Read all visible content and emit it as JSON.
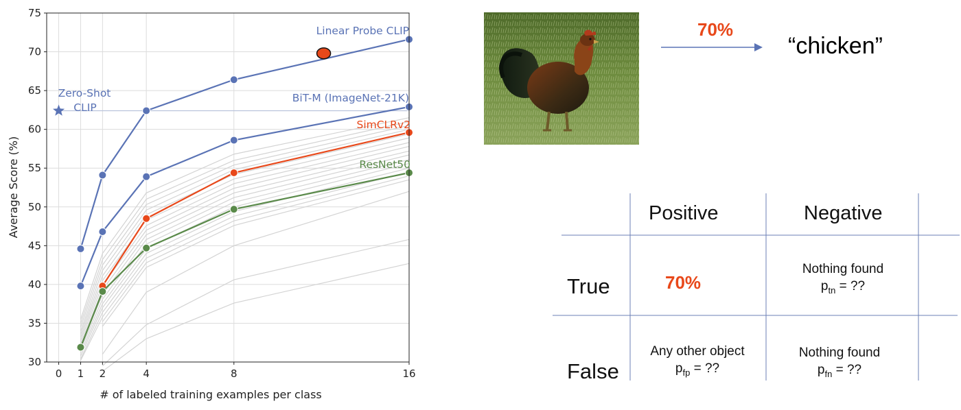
{
  "chart_data": {
    "type": "line",
    "xlabel": "# of labeled training examples per class",
    "ylabel": "Average Score (%)",
    "xticks": [
      0,
      1,
      2,
      4,
      8,
      16
    ],
    "yticks": [
      30,
      35,
      40,
      45,
      50,
      55,
      60,
      65,
      70,
      75
    ],
    "ylim": [
      30,
      75
    ],
    "grid": true,
    "series": [
      {
        "name": "Linear Probe CLIP",
        "color": "#5a73b5",
        "x": [
          1,
          2,
          4,
          8,
          16
        ],
        "y": [
          44.6,
          54.1,
          62.4,
          66.4,
          71.6
        ]
      },
      {
        "name": "BiT-M (ImageNet-21K)",
        "color": "#5a73b5",
        "x": [
          1,
          2,
          4,
          8,
          16
        ],
        "y": [
          39.8,
          46.8,
          53.9,
          58.6,
          62.9
        ]
      },
      {
        "name": "SimCLRv2",
        "color": "#e8481a",
        "x": [
          2,
          4,
          8,
          16
        ],
        "y": [
          39.8,
          48.5,
          54.4,
          59.6
        ]
      },
      {
        "name": "ResNet50",
        "color": "#5a8a4a",
        "x": [
          1,
          2,
          4,
          8,
          16
        ],
        "y": [
          31.9,
          39.1,
          44.7,
          49.7,
          54.4
        ]
      }
    ],
    "zero_shot": {
      "label_line1": "Zero-Shot",
      "label_line2": "CLIP",
      "x": 0,
      "y": 62.4,
      "color": "#5a73b5"
    },
    "highlight_point": {
      "x": 12.1,
      "y": 69.8,
      "color": "#e8481a"
    },
    "background_lines": [
      [
        1,
        35.5,
        2,
        44,
        4,
        51.8,
        8,
        56.8,
        16,
        61.5
      ],
      [
        1,
        35,
        2,
        43.2,
        4,
        51,
        8,
        56,
        16,
        61
      ],
      [
        1,
        34.5,
        2,
        42.5,
        4,
        50.3,
        8,
        55.4,
        16,
        60.5
      ],
      [
        1,
        34,
        2,
        41.8,
        4,
        49.6,
        8,
        54.8,
        16,
        60
      ],
      [
        1,
        33.6,
        2,
        41.1,
        4,
        49,
        8,
        54.2,
        16,
        59.4
      ],
      [
        1,
        33.2,
        2,
        40.5,
        4,
        48.3,
        8,
        53.6,
        16,
        58.9
      ],
      [
        1,
        32.8,
        2,
        39.9,
        4,
        47.6,
        8,
        53,
        16,
        58.3
      ],
      [
        1,
        32.4,
        2,
        39.3,
        4,
        47,
        8,
        52.4,
        16,
        57.8
      ],
      [
        1,
        32,
        2,
        38.7,
        4,
        46.4,
        8,
        51.8,
        16,
        57.2
      ],
      [
        1,
        31.6,
        2,
        38.1,
        4,
        45.8,
        8,
        51.2,
        16,
        56.7
      ],
      [
        1,
        31.2,
        2,
        37.5,
        4,
        45.2,
        8,
        50.6,
        16,
        56.1
      ],
      [
        1,
        30.8,
        2,
        37,
        4,
        44.6,
        8,
        50,
        16,
        55.6
      ],
      [
        1,
        30.4,
        2,
        36.4,
        4,
        44,
        8,
        49.4,
        16,
        55
      ],
      [
        1,
        30.2,
        2,
        35.8,
        4,
        43.4,
        8,
        48.8,
        16,
        54.5
      ],
      [
        2,
        35.2,
        4,
        42.8,
        8,
        48.2,
        16,
        54
      ],
      [
        2,
        34.6,
        4,
        42.2,
        8,
        47.6,
        16,
        53.5
      ],
      [
        2,
        31,
        4,
        39,
        8,
        45,
        16,
        52
      ],
      [
        2,
        29.5,
        4,
        34.8,
        8,
        40.6,
        16,
        45.8
      ],
      [
        2,
        28.8,
        4,
        33,
        8,
        37.6,
        16,
        42.7
      ]
    ]
  },
  "classification": {
    "percent": "70%",
    "label": "“chicken”"
  },
  "confusion_table": {
    "col_positive": "Positive",
    "col_negative": "Negative",
    "row_true": "True",
    "row_false": "False",
    "tp_value": "70%",
    "tn_line1": "Nothing found",
    "tn_prefix": "p",
    "tn_sub": "tn",
    "tn_suffix": " = ??",
    "fp_line1": "Any other object",
    "fp_prefix": "p",
    "fp_sub": "fp",
    "fp_suffix": " = ??",
    "fn_line1": "Nothing found",
    "fn_prefix": "p",
    "fn_sub": "fn",
    "fn_suffix": " = ??"
  },
  "colors": {
    "accent": "#e8481a",
    "clip_blue": "#5a73b5",
    "resnet_green": "#5a8a4a",
    "grid": "#d9d9d9",
    "table_lines": "#6b7fb6"
  }
}
